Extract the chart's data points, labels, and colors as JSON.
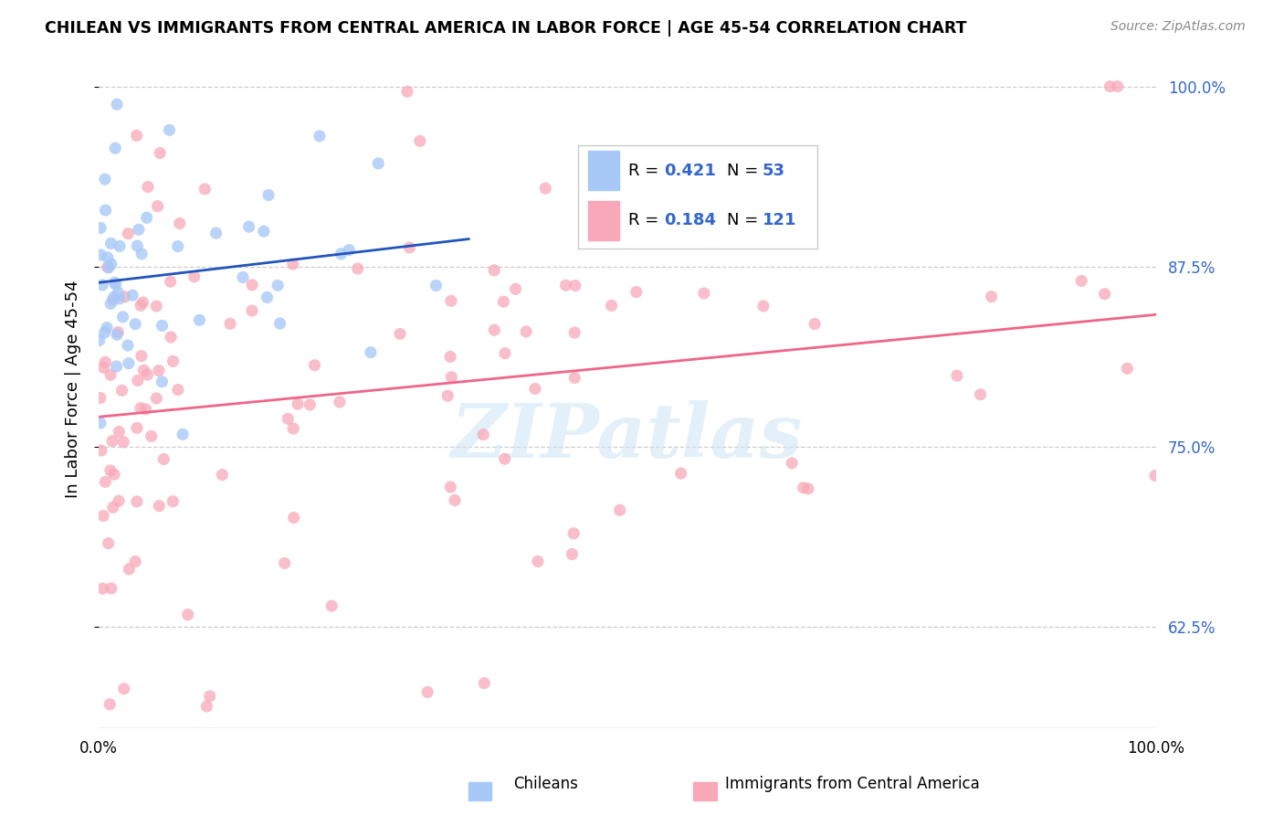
{
  "title": "CHILEAN VS IMMIGRANTS FROM CENTRAL AMERICA IN LABOR FORCE | AGE 45-54 CORRELATION CHART",
  "source_text": "Source: ZipAtlas.com",
  "ylabel": "In Labor Force | Age 45-54",
  "xlim": [
    0.0,
    1.0
  ],
  "ylim": [
    0.555,
    1.025
  ],
  "yticks": [
    0.625,
    0.75,
    0.875,
    1.0
  ],
  "ytick_labels": [
    "62.5%",
    "75.0%",
    "87.5%",
    "100.0%"
  ],
  "color_chilean": "#a8c8f8",
  "color_immigrant": "#f8a8b8",
  "color_line_chilean": "#2255bb",
  "color_line_immigrant": "#ee6688",
  "color_tick": "#3366cc",
  "watermark": "ZIPatlas",
  "legend_r1": "0.421",
  "legend_n1": "53",
  "legend_r2": "0.184",
  "legend_n2": "121"
}
